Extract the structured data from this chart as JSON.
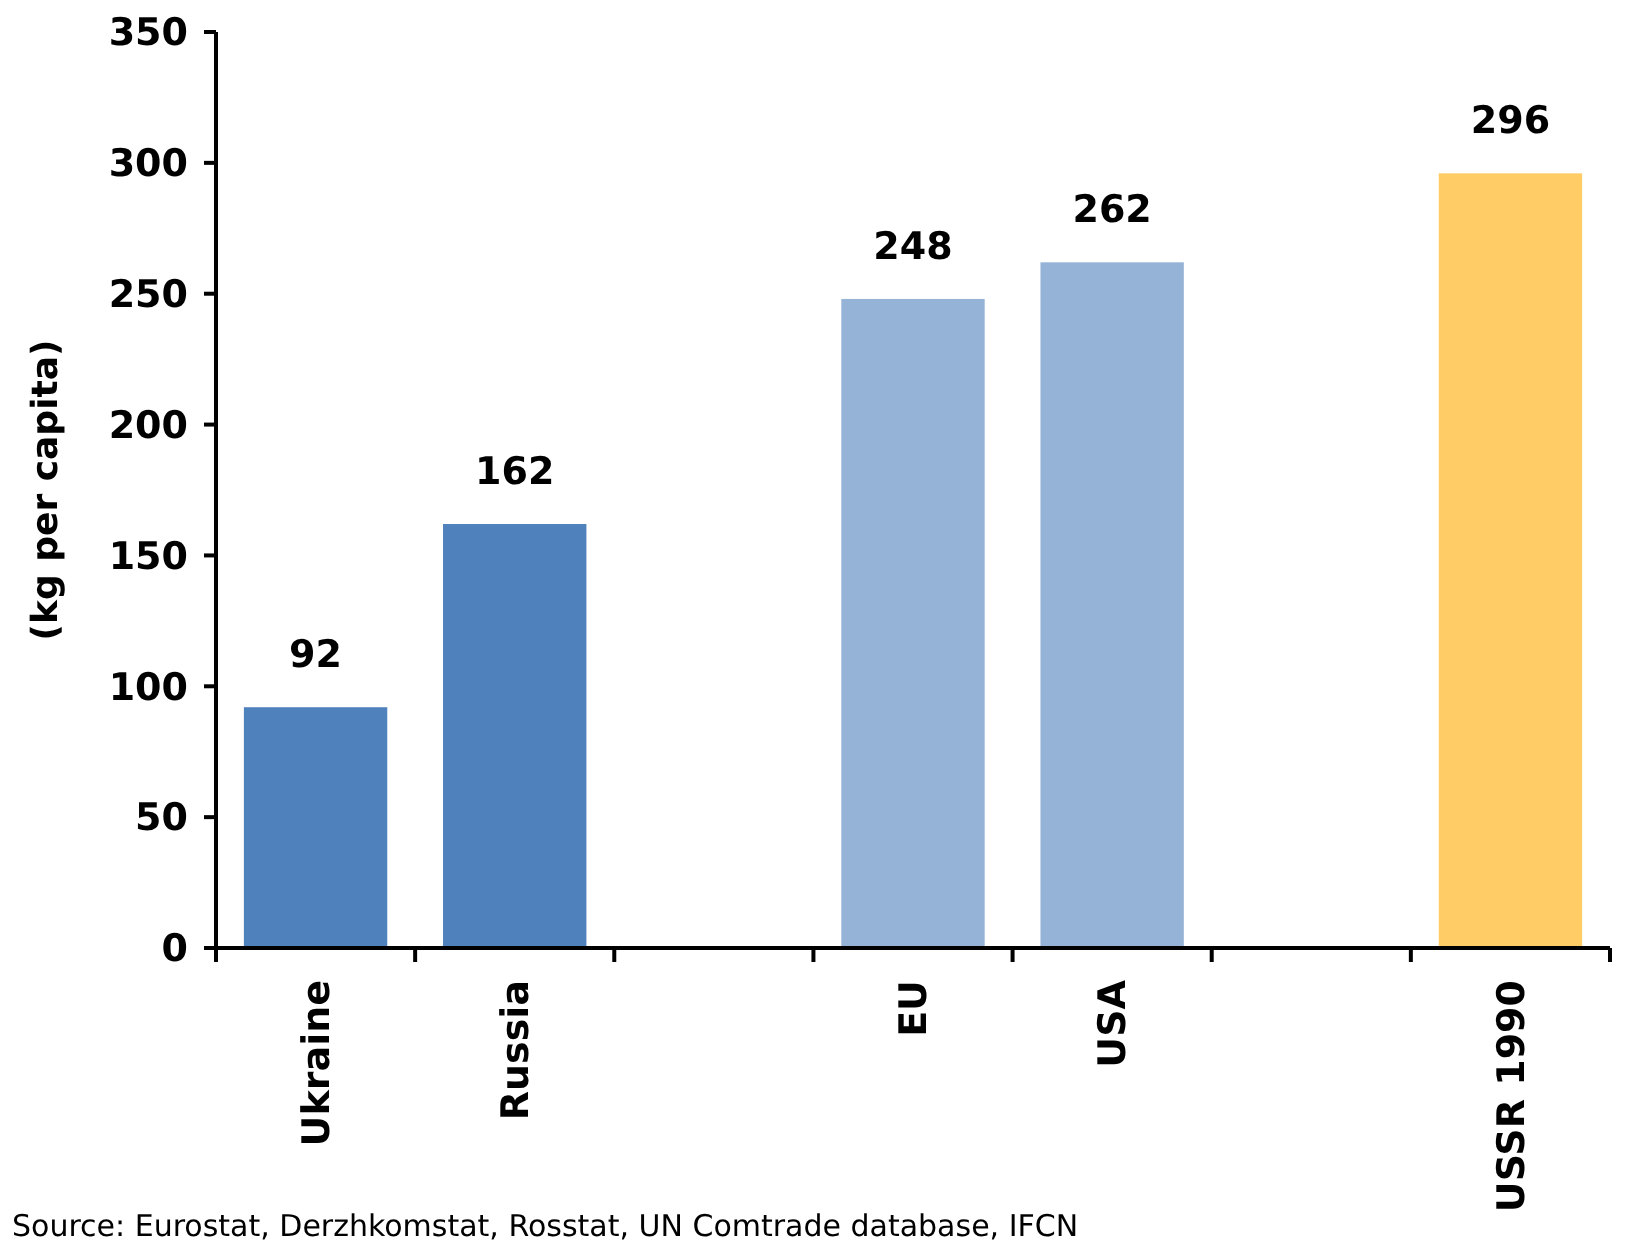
{
  "chart_data": {
    "type": "bar",
    "ylabel": "(kg per capita)",
    "categories": [
      "Ukraine",
      "Russia",
      null,
      "EU",
      "USA",
      null,
      "USSR 1990"
    ],
    "values": [
      92,
      162,
      null,
      248,
      262,
      null,
      296
    ],
    "colors": [
      "#4f81bd",
      "#4f81bd",
      null,
      "#95b3d7",
      "#95b3d7",
      null,
      "#ffcc66"
    ],
    "ylim": [
      0,
      350
    ],
    "yticks": [
      0,
      50,
      100,
      150,
      200,
      250,
      300,
      350
    ],
    "data_labels": true,
    "grid": false,
    "annotations": [
      "Source: Eurostat, Derzhkomstat, Rosstat, UN Comtrade database, IFCN"
    ]
  }
}
